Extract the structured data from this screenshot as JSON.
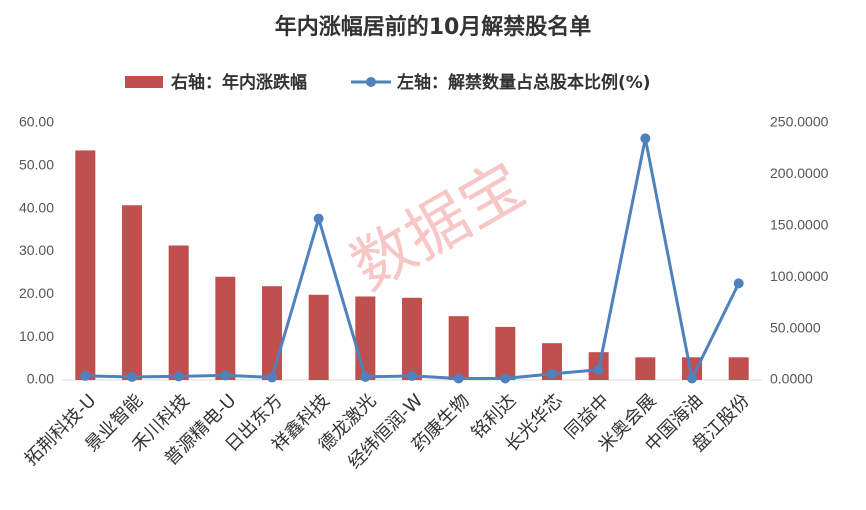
{
  "chart_data": {
    "type": "bar_line",
    "title": "年内涨幅居前的10月解禁股名单",
    "watermark": "数据宝",
    "categories": [
      "拓荆科技-U",
      "景业智能",
      "禾川科技",
      "普源精电-U",
      "日出东方",
      "祥鑫科技",
      "德龙激光",
      "经纬恒润-W",
      "药康生物",
      "铭利达",
      "长光华芯",
      "同益中",
      "米奥会展",
      "中国海油",
      "盘江股份"
    ],
    "series": [
      {
        "name": "右轴：年内涨跌幅",
        "color": "#c0504d",
        "kind": "bar",
        "values": [
          53.6,
          40.8,
          31.4,
          24.1,
          21.9,
          19.9,
          19.5,
          19.2,
          14.9,
          12.4,
          8.6,
          6.5,
          5.3,
          5.3,
          5.3
        ]
      },
      {
        "name": "左轴：解禁数量占总股本比例(%)",
        "color": "#4f81bd",
        "kind": "line",
        "axis": "y2",
        "values": [
          4,
          3,
          3.5,
          4.5,
          2.5,
          157,
          3,
          4,
          1.5,
          1.5,
          6,
          10,
          235,
          1.5,
          94
        ]
      }
    ],
    "ylim": [
      0,
      60
    ],
    "yticks": [
      {
        "value": 0,
        "label": "0.00"
      },
      {
        "value": 10,
        "label": "10.00"
      },
      {
        "value": 20,
        "label": "20.00"
      },
      {
        "value": 30,
        "label": "30.00"
      },
      {
        "value": 40,
        "label": "40.00"
      },
      {
        "value": 50,
        "label": "50.00"
      },
      {
        "value": 60,
        "label": "60.00"
      }
    ],
    "y2lim": [
      0,
      250
    ],
    "y2ticks": [
      {
        "value": 0,
        "label": "0.0000"
      },
      {
        "value": 50,
        "label": "50.0000"
      },
      {
        "value": 100,
        "label": "100.0000"
      },
      {
        "value": 150,
        "label": "150.0000"
      },
      {
        "value": 200,
        "label": "200.0000"
      },
      {
        "value": 250,
        "label": "250.0000"
      }
    ]
  }
}
